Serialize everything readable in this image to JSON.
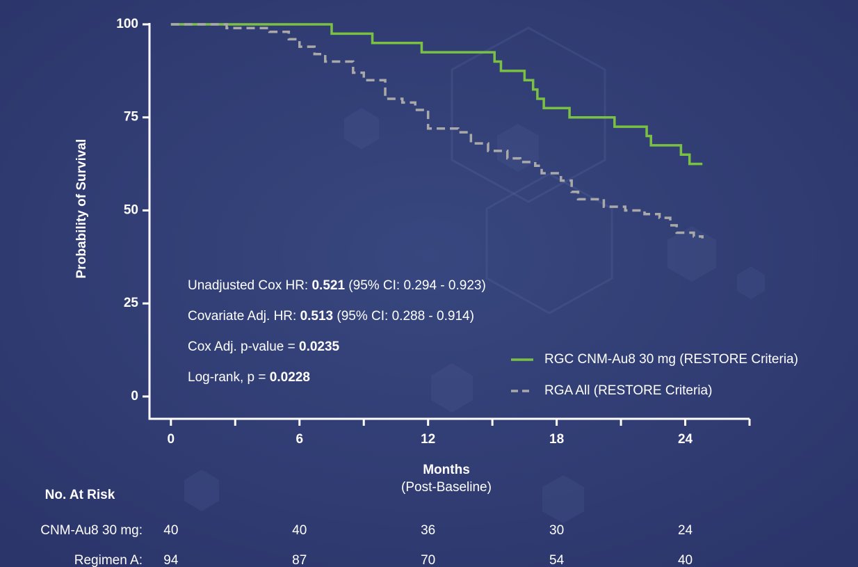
{
  "chart_data": {
    "type": "step",
    "ylabel": "Probability of Survival",
    "xlabel": "Months",
    "xlabel_sub": "(Post-Baseline)",
    "xlim": [
      -1,
      27
    ],
    "xticks": [
      0,
      6,
      12,
      18,
      24
    ],
    "xminorticks": [
      3,
      9,
      15,
      21,
      27
    ],
    "ylim": [
      -6,
      100
    ],
    "yticks": [
      0,
      25,
      50,
      75,
      100
    ],
    "series": [
      {
        "name": "RGC CNM-Au8 30 mg (RESTORE Criteria)",
        "color": "#7ac143",
        "dash": false,
        "x": [
          0,
          7.5,
          9.4,
          11.7,
          15.1,
          15.4,
          16.5,
          16.9,
          17.1,
          17.4,
          18.6,
          20.7,
          22.2,
          22.4,
          23.8,
          24.2,
          24.8
        ],
        "values": [
          100,
          97.5,
          95,
          92.5,
          90,
          87.5,
          85,
          82.5,
          80,
          77.5,
          75,
          72.5,
          70,
          67.5,
          65,
          62.5,
          62.5
        ]
      },
      {
        "name": "RGA All (RESTORE Criteria)",
        "color": "#a9a9a9",
        "dash": true,
        "x": [
          0,
          2.6,
          4.6,
          5.5,
          6,
          6.7,
          7.2,
          8.5,
          9,
          10,
          10.8,
          11.4,
          12,
          13.4,
          14,
          14.8,
          15.7,
          16.3,
          17,
          17.3,
          18.2,
          18.7,
          19,
          20.2,
          21.2,
          22.1,
          22.8,
          23.3,
          23.6,
          24.4,
          24.8
        ],
        "values": [
          100,
          99,
          98,
          96,
          94,
          92,
          90,
          87,
          85,
          80,
          79,
          77,
          72,
          71,
          68,
          66,
          64,
          63,
          62,
          60,
          58,
          55,
          53,
          51,
          50,
          49,
          48,
          46,
          44,
          43,
          42.5
        ]
      }
    ],
    "annotations": [
      {
        "prefix": "Unadjusted Cox HR: ",
        "bold": "0.521",
        "suffix": " (95% CI: 0.294 - 0.923)"
      },
      {
        "prefix": "Covariate Adj. HR: ",
        "bold": "0.513",
        "suffix": " (95% CI: 0.288 - 0.914)"
      },
      {
        "prefix": "Cox Adj. p-value = ",
        "bold": "0.0235"
      },
      {
        "prefix": "Log-rank, p = ",
        "bold": "0.0228"
      }
    ],
    "at_risk": {
      "title": "No. At Risk",
      "x": [
        0,
        6,
        12,
        18,
        24
      ],
      "rows": [
        {
          "label": "CNM-Au8 30 mg:",
          "values": [
            40,
            40,
            36,
            30,
            24
          ]
        },
        {
          "label": "Regimen A:",
          "values": [
            94,
            87,
            70,
            54,
            40
          ]
        }
      ]
    }
  }
}
